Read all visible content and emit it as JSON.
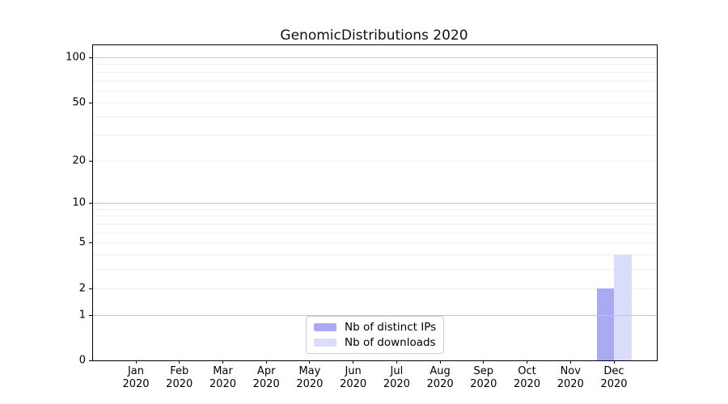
{
  "figure": {
    "title": "GenomicDistributions 2020"
  },
  "colors": {
    "ips_bar": "#a9a9f4",
    "downloads_bar": "#dbdbfa",
    "grid_major": "#c6c6c6",
    "grid_minor": "#f0f0f0",
    "axis": "#000000",
    "legend_border": "#cccccc",
    "background": "#ffffff"
  },
  "chart_data": {
    "type": "bar",
    "title": "GenomicDistributions 2020",
    "categories": [
      "Jan",
      "Feb",
      "Mar",
      "Apr",
      "May",
      "Jun",
      "Jul",
      "Aug",
      "Sep",
      "Oct",
      "Nov",
      "Dec"
    ],
    "year_label": "2020",
    "series": [
      {
        "name": "Nb of distinct IPs",
        "color": "#a9a9f4",
        "values": [
          0,
          0,
          0,
          0,
          0,
          0,
          0,
          0,
          0,
          0,
          0,
          2
        ]
      },
      {
        "name": "Nb of downloads",
        "color": "#dbdbfa",
        "values": [
          0,
          0,
          0,
          0,
          0,
          0,
          0,
          0,
          0,
          0,
          0,
          4
        ]
      }
    ],
    "yscale": "log1p",
    "ylim": [
      0,
      120
    ],
    "yticks": [
      0,
      1,
      2,
      5,
      10,
      20,
      50,
      100
    ],
    "major_gridlines": [
      1,
      10,
      100
    ],
    "minor_gridlines": [
      2,
      3,
      4,
      5,
      6,
      7,
      8,
      9,
      20,
      30,
      40,
      50,
      60,
      70,
      80,
      90
    ],
    "grid": true,
    "legend_position": "bottom-center",
    "legend_items": [
      "Nb of distinct IPs",
      "Nb of downloads"
    ]
  }
}
